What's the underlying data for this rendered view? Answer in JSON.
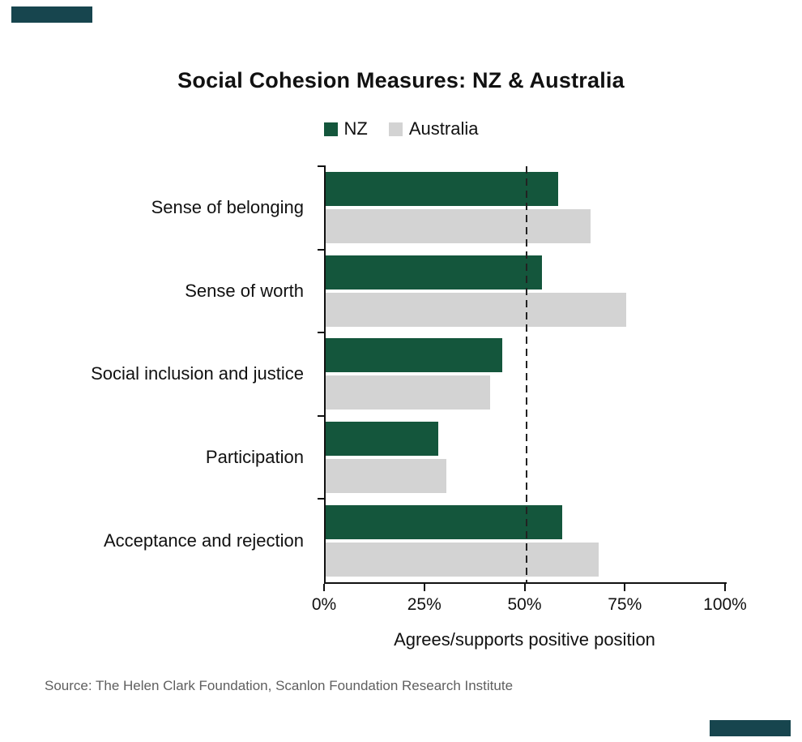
{
  "page": {
    "source": "Source: The Helen Clark Foundation, Scanlon Foundation Research Institute"
  },
  "colors": {
    "accent_corner": "#17454e",
    "nz_green": "#14563c",
    "australia_gray": "#d3d3d3",
    "axis": "#111111"
  },
  "chart_data": {
    "type": "bar",
    "orientation": "horizontal",
    "title": "Social Cohesion Measures: NZ & Australia",
    "xlabel": "Agrees/supports positive position",
    "categories": [
      "Sense of belonging",
      "Sense of worth",
      "Social inclusion and justice",
      "Participation",
      "Acceptance and rejection"
    ],
    "series": [
      {
        "name": "NZ",
        "color": "#14563c",
        "values": [
          58,
          54,
          44,
          28,
          59
        ]
      },
      {
        "name": "Australia",
        "color": "#d3d3d3",
        "values": [
          66,
          75,
          41,
          30,
          68
        ]
      }
    ],
    "xlim": [
      0,
      100
    ],
    "x_ticks": [
      "0%",
      "25%",
      "50%",
      "75%",
      "100%"
    ],
    "x_tick_values": [
      0,
      25,
      50,
      75,
      100
    ],
    "reference_line_x": 50,
    "grid": false,
    "legend_position": "top"
  }
}
